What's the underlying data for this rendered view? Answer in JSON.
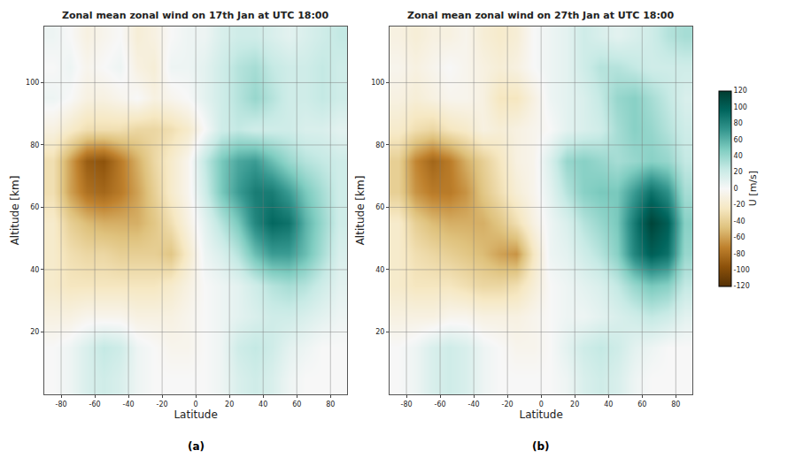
{
  "chart_data": [
    {
      "type": "heatmap",
      "title": "Zonal mean zonal wind on 17th Jan at UTC 18:00",
      "x_label": "Latitude",
      "y_label": "Altitude [km]",
      "annotation": "(a)",
      "grid": true,
      "xlim": [
        -90,
        90
      ],
      "ylim": [
        0,
        118
      ],
      "xticks": [
        -80,
        -60,
        -40,
        -20,
        0,
        20,
        40,
        60,
        80
      ],
      "yticks": [
        20,
        40,
        60,
        80,
        100
      ],
      "x": [
        -85,
        -75,
        -65,
        -55,
        -45,
        -35,
        -25,
        -15,
        -5,
        5,
        15,
        25,
        35,
        45,
        55,
        65,
        75,
        85
      ],
      "y": [
        5,
        15,
        25,
        35,
        45,
        55,
        65,
        75,
        85,
        95,
        105,
        115
      ],
      "z": [
        [
          0,
          5,
          15,
          20,
          15,
          5,
          0,
          0,
          0,
          0,
          5,
          15,
          20,
          15,
          5,
          0,
          0,
          0
        ],
        [
          0,
          5,
          15,
          25,
          20,
          5,
          0,
          -5,
          -5,
          0,
          5,
          20,
          25,
          20,
          10,
          5,
          0,
          0
        ],
        [
          -10,
          -10,
          -5,
          -5,
          -5,
          -10,
          -10,
          -10,
          -5,
          0,
          5,
          10,
          15,
          20,
          20,
          15,
          10,
          5
        ],
        [
          -20,
          -25,
          -25,
          -25,
          -25,
          -25,
          -25,
          -20,
          -10,
          0,
          5,
          10,
          20,
          30,
          35,
          30,
          20,
          10
        ],
        [
          -20,
          -30,
          -35,
          -35,
          -40,
          -40,
          -40,
          -45,
          -20,
          5,
          15,
          30,
          55,
          70,
          70,
          55,
          35,
          15
        ],
        [
          -20,
          -40,
          -50,
          -55,
          -55,
          -55,
          -45,
          -30,
          -10,
          10,
          30,
          50,
          80,
          95,
          90,
          60,
          40,
          20
        ],
        [
          -30,
          -60,
          -80,
          -85,
          -75,
          -60,
          -40,
          -20,
          -5,
          20,
          50,
          70,
          85,
          85,
          70,
          50,
          35,
          20
        ],
        [
          -30,
          -60,
          -90,
          -95,
          -75,
          -55,
          -35,
          -20,
          -5,
          25,
          50,
          65,
          70,
          55,
          40,
          30,
          25,
          20
        ],
        [
          -10,
          -20,
          -30,
          -30,
          -30,
          -35,
          -35,
          -30,
          -20,
          0,
          20,
          25,
          20,
          20,
          20,
          15,
          15,
          10
        ],
        [
          5,
          0,
          -10,
          -10,
          -5,
          0,
          -10,
          -5,
          0,
          10,
          20,
          30,
          40,
          30,
          20,
          20,
          25,
          20
        ],
        [
          0,
          5,
          -5,
          0,
          5,
          -10,
          -15,
          5,
          5,
          10,
          20,
          30,
          35,
          25,
          20,
          20,
          25,
          20
        ],
        [
          5,
          0,
          -10,
          -5,
          0,
          -15,
          -10,
          0,
          5,
          5,
          15,
          20,
          20,
          15,
          10,
          15,
          20,
          25
        ]
      ]
    },
    {
      "type": "heatmap",
      "title": "Zonal mean zonal wind on 27th Jan at UTC 18:00",
      "x_label": "Latitude",
      "y_label": "Altitude [km]",
      "annotation": "(b)",
      "grid": true,
      "xlim": [
        -90,
        90
      ],
      "ylim": [
        0,
        118
      ],
      "xticks": [
        -80,
        -60,
        -40,
        -20,
        0,
        20,
        40,
        60,
        80
      ],
      "yticks": [
        20,
        40,
        60,
        80,
        100
      ],
      "x": [
        -85,
        -75,
        -65,
        -55,
        -45,
        -35,
        -25,
        -15,
        -5,
        5,
        15,
        25,
        35,
        45,
        55,
        65,
        75,
        85
      ],
      "y": [
        5,
        15,
        25,
        35,
        45,
        55,
        65,
        75,
        85,
        95,
        105,
        115
      ],
      "z": [
        [
          0,
          5,
          15,
          20,
          15,
          5,
          0,
          0,
          0,
          0,
          5,
          15,
          20,
          15,
          5,
          0,
          0,
          0
        ],
        [
          0,
          5,
          15,
          20,
          15,
          5,
          0,
          -5,
          -5,
          0,
          10,
          20,
          25,
          20,
          10,
          5,
          0,
          0
        ],
        [
          -10,
          -10,
          -10,
          -5,
          -5,
          -10,
          -10,
          -10,
          -5,
          0,
          5,
          5,
          10,
          15,
          20,
          25,
          20,
          10
        ],
        [
          -20,
          -25,
          -25,
          -25,
          -30,
          -35,
          -35,
          -30,
          -15,
          0,
          5,
          10,
          15,
          25,
          40,
          50,
          45,
          25
        ],
        [
          -20,
          -30,
          -35,
          -40,
          -45,
          -50,
          -60,
          -65,
          -25,
          5,
          10,
          20,
          30,
          45,
          80,
          100,
          90,
          40
        ],
        [
          -20,
          -40,
          -50,
          -55,
          -55,
          -55,
          -45,
          -30,
          -10,
          5,
          15,
          30,
          40,
          50,
          85,
          115,
          100,
          45
        ],
        [
          -40,
          -65,
          -75,
          -75,
          -65,
          -45,
          -30,
          -15,
          -5,
          10,
          30,
          45,
          50,
          50,
          70,
          90,
          75,
          35
        ],
        [
          -40,
          -70,
          -85,
          -75,
          -55,
          -40,
          -25,
          -10,
          -5,
          15,
          40,
          45,
          40,
          35,
          40,
          45,
          40,
          25
        ],
        [
          -20,
          -30,
          -35,
          -25,
          -20,
          -10,
          -15,
          -10,
          -5,
          0,
          10,
          15,
          20,
          35,
          45,
          40,
          30,
          20
        ],
        [
          -10,
          -15,
          -10,
          -5,
          -5,
          -10,
          -25,
          -25,
          -10,
          5,
          10,
          15,
          25,
          40,
          45,
          35,
          25,
          15
        ],
        [
          -5,
          -10,
          -5,
          0,
          -5,
          -10,
          -15,
          -10,
          0,
          5,
          10,
          20,
          30,
          30,
          25,
          20,
          20,
          20
        ],
        [
          -10,
          -15,
          -10,
          -10,
          -5,
          -15,
          -20,
          -15,
          0,
          5,
          10,
          20,
          15,
          10,
          15,
          20,
          30,
          35
        ]
      ],
      "colorbar": {
        "title": "U [m/s]",
        "range": [
          -120,
          120
        ],
        "ticks": [
          -120,
          -100,
          -80,
          -60,
          -40,
          -20,
          0,
          20,
          40,
          60,
          80,
          100,
          120
        ]
      }
    }
  ]
}
